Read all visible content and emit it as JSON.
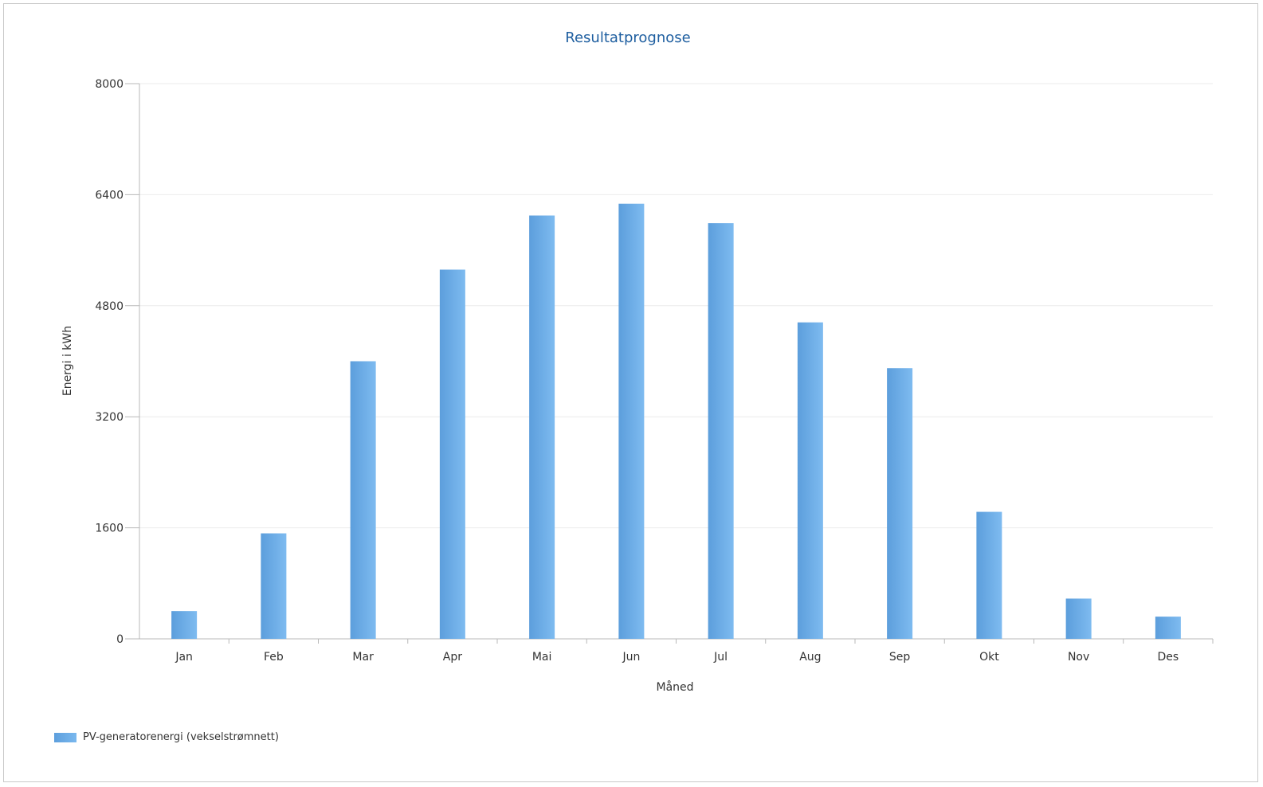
{
  "chart_data": {
    "type": "bar",
    "title": "Resultatprognose",
    "xlabel": "Måned",
    "ylabel": "Energi i kWh",
    "categories": [
      "Jan",
      "Feb",
      "Mar",
      "Apr",
      "Mai",
      "Jun",
      "Jul",
      "Aug",
      "Sep",
      "Okt",
      "Nov",
      "Des"
    ],
    "series": [
      {
        "name": "PV-generatorenergi (vekselstrømnett)",
        "values": [
          400,
          1520,
          4000,
          5320,
          6100,
          6270,
          5990,
          4560,
          3900,
          1830,
          580,
          320
        ],
        "color": "#6aaae6"
      }
    ],
    "ylim": [
      0,
      8000
    ],
    "yticks": [
      "0",
      "1600",
      "3200",
      "4800",
      "6400",
      "8000"
    ],
    "grid": true,
    "legend_position": "bottom-left",
    "title_color": "#1f5fa0"
  }
}
